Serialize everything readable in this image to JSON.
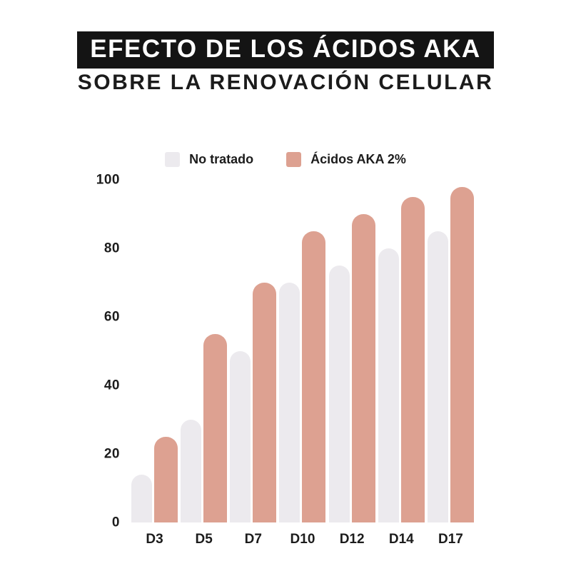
{
  "title": {
    "line1": "EFECTO DE LOS ÁCIDOS AKA",
    "line2": "SOBRE LA RENOVACIÓN CELULAR"
  },
  "colors": {
    "title_band_bg": "#141414",
    "title_band_text": "#FFFFFF",
    "text": "#1B1B1B",
    "background": "#FFFFFF",
    "untreated_bar": "#ECEAEE",
    "aka_bar": "#DDA191"
  },
  "chart_data": {
    "type": "bar",
    "title": "EFECTO DE LOS ÁCIDOS AKA SOBRE LA RENOVACIÓN CELULAR",
    "categories": [
      "D3",
      "D5",
      "D7",
      "D10",
      "D12",
      "D14",
      "D17"
    ],
    "series": [
      {
        "name": "No tratado",
        "color": "#ECEAEE",
        "values": [
          14,
          30,
          50,
          70,
          75,
          80,
          85
        ]
      },
      {
        "name": "Ácidos AKA 2%",
        "color": "#DDA191",
        "values": [
          25,
          55,
          70,
          85,
          90,
          95,
          98
        ]
      }
    ],
    "xlabel": "",
    "ylabel": "",
    "ylim": [
      0,
      100
    ],
    "yticks": [
      0,
      20,
      40,
      60,
      80,
      100
    ],
    "grid": false,
    "legend_position": "top-center"
  }
}
